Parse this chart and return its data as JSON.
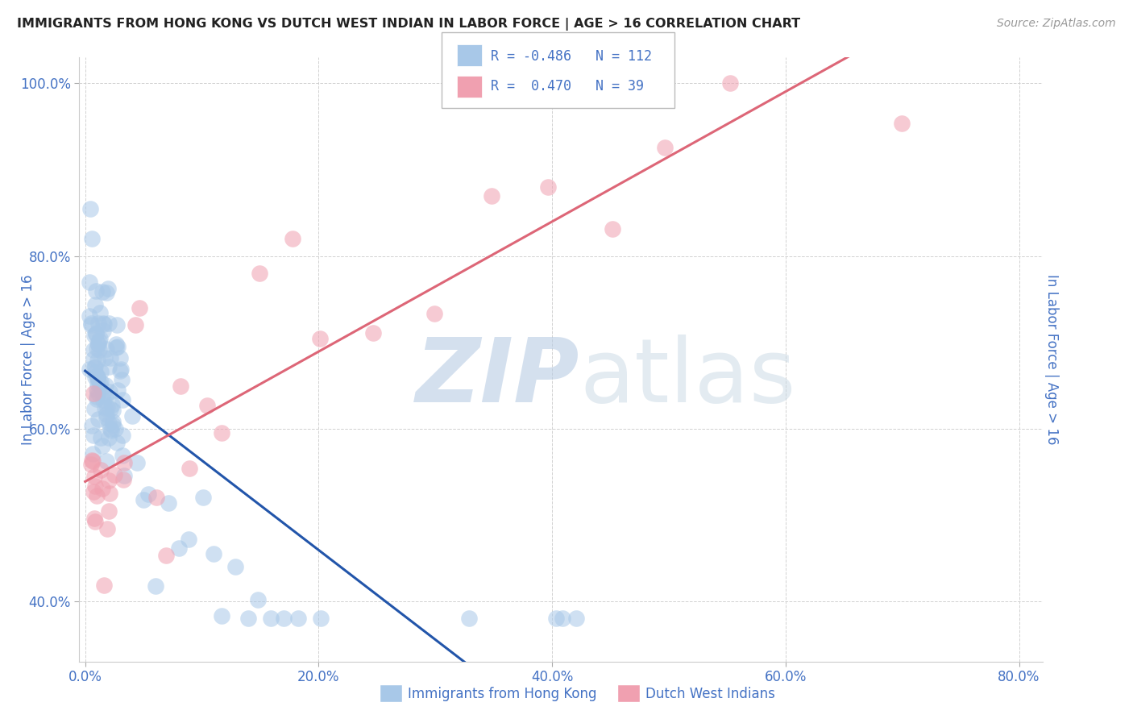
{
  "title": "IMMIGRANTS FROM HONG KONG VS DUTCH WEST INDIAN IN LABOR FORCE | AGE > 16 CORRELATION CHART",
  "source": "Source: ZipAtlas.com",
  "ylabel": "In Labor Force | Age > 16",
  "watermark_ZIP": "ZIP",
  "watermark_atlas": "atlas",
  "legend_label_blue": "Immigrants from Hong Kong",
  "legend_label_pink": "Dutch West Indians",
  "R_blue": -0.486,
  "N_blue": 112,
  "R_pink": 0.47,
  "N_pink": 39,
  "xlim": [
    -0.005,
    0.82
  ],
  "ylim": [
    0.33,
    1.03
  ],
  "x_ticks": [
    0.0,
    0.2,
    0.4,
    0.6,
    0.8
  ],
  "x_tick_labels": [
    "0.0%",
    "20.0%",
    "40.0%",
    "60.0%",
    "80.0%"
  ],
  "y_ticks": [
    0.4,
    0.6,
    0.8,
    1.0
  ],
  "y_tick_labels": [
    "40.0%",
    "60.0%",
    "80.0%",
    "100.0%"
  ],
  "blue_color": "#A8C8E8",
  "pink_color": "#F0A0B0",
  "blue_line_color": "#2255AA",
  "pink_line_color": "#DD6677",
  "background_color": "#FFFFFF",
  "grid_color": "#CCCCCC",
  "title_color": "#222222",
  "label_color": "#4472C4",
  "tick_color": "#4472C4",
  "blue_seed_x": [
    0.005,
    0.005,
    0.005,
    0.005,
    0.005,
    0.005,
    0.005,
    0.005,
    0.005,
    0.005,
    0.008,
    0.008,
    0.008,
    0.008,
    0.008,
    0.008,
    0.008,
    0.008,
    0.008,
    0.008,
    0.01,
    0.01,
    0.01,
    0.01,
    0.01,
    0.01,
    0.01,
    0.01,
    0.01,
    0.01,
    0.012,
    0.012,
    0.012,
    0.012,
    0.012,
    0.012,
    0.012,
    0.012,
    0.012,
    0.012,
    0.015,
    0.015,
    0.015,
    0.015,
    0.015,
    0.015,
    0.015,
    0.015,
    0.015,
    0.015,
    0.018,
    0.018,
    0.018,
    0.018,
    0.018,
    0.018,
    0.018,
    0.018,
    0.018,
    0.018,
    0.02,
    0.02,
    0.02,
    0.02,
    0.02,
    0.02,
    0.02,
    0.02,
    0.02,
    0.02,
    0.025,
    0.025,
    0.025,
    0.025,
    0.025,
    0.025,
    0.025,
    0.025,
    0.025,
    0.025,
    0.03,
    0.03,
    0.03,
    0.03,
    0.03,
    0.03,
    0.03,
    0.03,
    0.03,
    0.03,
    0.04,
    0.04,
    0.05,
    0.05,
    0.06,
    0.07,
    0.08,
    0.09,
    0.1,
    0.11,
    0.12,
    0.13,
    0.14,
    0.15,
    0.16,
    0.17,
    0.18,
    0.2,
    0.33,
    0.4,
    0.41,
    0.42
  ],
  "pink_seed_x": [
    0.005,
    0.005,
    0.005,
    0.007,
    0.007,
    0.009,
    0.009,
    0.01,
    0.012,
    0.012,
    0.015,
    0.015,
    0.018,
    0.018,
    0.02,
    0.02,
    0.025,
    0.025,
    0.03,
    0.035,
    0.04,
    0.05,
    0.06,
    0.07,
    0.08,
    0.09,
    0.1,
    0.12,
    0.15,
    0.18,
    0.2,
    0.25,
    0.3,
    0.35,
    0.4,
    0.45,
    0.5,
    0.55,
    0.7
  ]
}
